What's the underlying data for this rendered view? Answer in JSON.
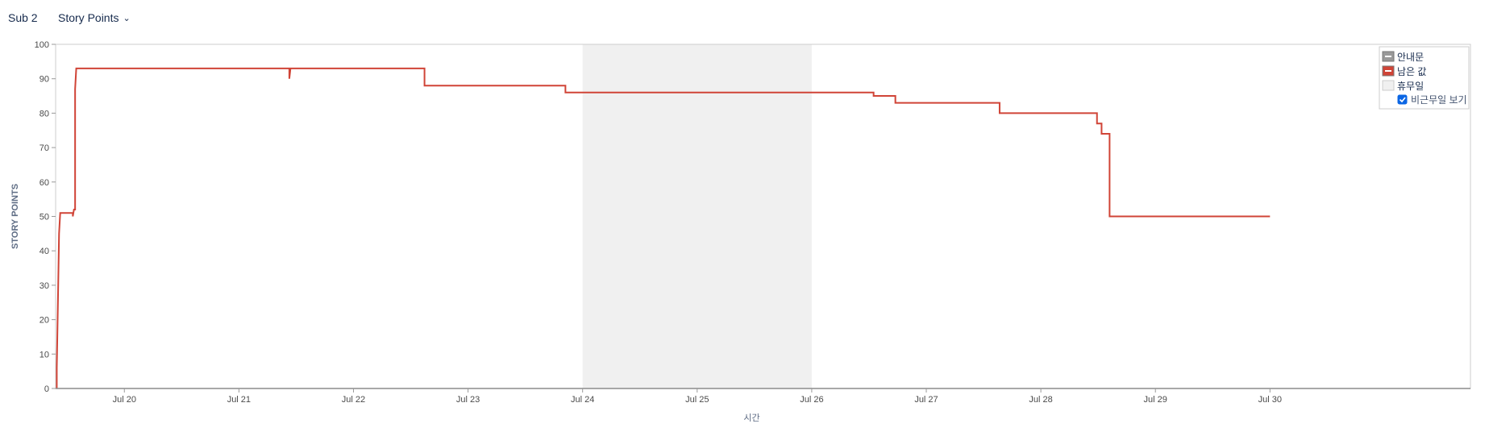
{
  "toolbar": {
    "sprint_label": "Sub 2",
    "metric_label": "Story Points",
    "metric_chevron_icon": "chevron-down-icon"
  },
  "chart_data": {
    "type": "line",
    "xlabel": "시간",
    "ylabel": "STORY POINTS",
    "ylim": [
      0,
      100
    ],
    "yticks": [
      "0",
      "10",
      "20",
      "30",
      "40",
      "50",
      "60",
      "70",
      "80",
      "90",
      "100"
    ],
    "xlim": [
      19.4,
      31.75
    ],
    "xticks": [
      {
        "label": "Jul 20",
        "x": 20
      },
      {
        "label": "Jul 21",
        "x": 21
      },
      {
        "label": "Jul 22",
        "x": 22
      },
      {
        "label": "Jul 23",
        "x": 23
      },
      {
        "label": "Jul 24",
        "x": 24
      },
      {
        "label": "Jul 25",
        "x": 25
      },
      {
        "label": "Jul 26",
        "x": 26
      },
      {
        "label": "Jul 27",
        "x": 27
      },
      {
        "label": "Jul 28",
        "x": 28
      },
      {
        "label": "Jul 29",
        "x": 29
      },
      {
        "label": "Jul 30",
        "x": 30
      }
    ],
    "non_working_range": [
      24.0,
      26.0
    ],
    "series": [
      {
        "name": "남은 값",
        "color": "#d04437",
        "step": true,
        "points": [
          {
            "x": 19.41,
            "y": 0
          },
          {
            "x": 19.41,
            "y": 6
          },
          {
            "x": 19.42,
            "y": 25
          },
          {
            "x": 19.43,
            "y": 45
          },
          {
            "x": 19.44,
            "y": 51
          },
          {
            "x": 19.53,
            "y": 51
          },
          {
            "x": 19.55,
            "y": 51
          },
          {
            "x": 19.55,
            "y": 50
          },
          {
            "x": 19.56,
            "y": 52
          },
          {
            "x": 19.57,
            "y": 52
          },
          {
            "x": 19.57,
            "y": 87
          },
          {
            "x": 19.58,
            "y": 93
          },
          {
            "x": 21.44,
            "y": 93
          },
          {
            "x": 21.44,
            "y": 90
          },
          {
            "x": 21.45,
            "y": 93
          },
          {
            "x": 22.62,
            "y": 93
          },
          {
            "x": 22.62,
            "y": 88
          },
          {
            "x": 23.85,
            "y": 88
          },
          {
            "x": 23.85,
            "y": 86
          },
          {
            "x": 26.54,
            "y": 86
          },
          {
            "x": 26.54,
            "y": 85
          },
          {
            "x": 26.73,
            "y": 85
          },
          {
            "x": 26.73,
            "y": 83
          },
          {
            "x": 27.64,
            "y": 83
          },
          {
            "x": 27.64,
            "y": 80
          },
          {
            "x": 28.49,
            "y": 80
          },
          {
            "x": 28.49,
            "y": 77
          },
          {
            "x": 28.53,
            "y": 77
          },
          {
            "x": 28.53,
            "y": 74
          },
          {
            "x": 28.6,
            "y": 74
          },
          {
            "x": 28.6,
            "y": 50
          },
          {
            "x": 30.0,
            "y": 50
          }
        ]
      }
    ],
    "legend": {
      "position": "top-right",
      "items": [
        {
          "label": "안내문",
          "color": "#999999"
        },
        {
          "label": "남은 값",
          "color": "#d04437"
        },
        {
          "label": "휴무일",
          "color": "#f0f0f0"
        }
      ],
      "checkbox_label": "비근무일 보기",
      "checkbox_checked": true
    }
  }
}
